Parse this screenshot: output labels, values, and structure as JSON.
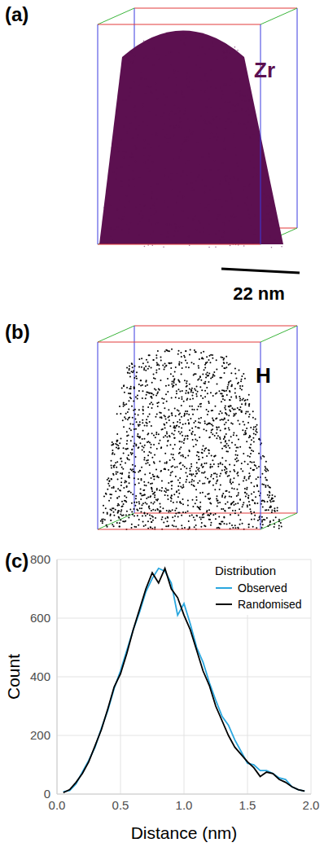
{
  "panels": [
    {
      "label": "(a)",
      "element": "Zr",
      "scale_bar": "22 nm",
      "color": "#5c1050"
    },
    {
      "label": "(b)",
      "element": "H",
      "color": "#000000"
    },
    {
      "label": "(c)"
    }
  ],
  "chart_data": {
    "type": "line",
    "x_label": "Distance (nm)",
    "y_label": "Count",
    "legend_title": "Distribution",
    "legend": "top-right",
    "grid": true,
    "x": [
      0.05,
      0.1,
      0.15,
      0.2,
      0.25,
      0.3,
      0.35,
      0.4,
      0.45,
      0.5,
      0.55,
      0.6,
      0.65,
      0.7,
      0.75,
      0.8,
      0.85,
      0.9,
      0.95,
      1.0,
      1.05,
      1.1,
      1.15,
      1.2,
      1.25,
      1.3,
      1.35,
      1.4,
      1.45,
      1.5,
      1.55,
      1.6,
      1.65,
      1.7,
      1.75,
      1.8,
      1.85,
      1.9,
      1.95
    ],
    "series": [
      {
        "name": "Observed",
        "color": "#2aa7df",
        "values": [
          8,
          12,
          35,
          75,
          115,
          160,
          225,
          285,
          360,
          420,
          490,
          560,
          620,
          690,
          735,
          770,
          760,
          720,
          610,
          650,
          580,
          500,
          450,
          380,
          320,
          265,
          235,
          185,
          145,
          105,
          100,
          80,
          80,
          70,
          55,
          50,
          25,
          15,
          10
        ]
      },
      {
        "name": "Randomised",
        "color": "#000000",
        "values": [
          5,
          15,
          40,
          70,
          110,
          165,
          220,
          290,
          365,
          410,
          480,
          560,
          630,
          700,
          755,
          720,
          770,
          700,
          670,
          610,
          560,
          490,
          420,
          370,
          300,
          250,
          200,
          160,
          135,
          110,
          90,
          60,
          75,
          70,
          50,
          40,
          25,
          15,
          10
        ]
      }
    ],
    "xlim": [
      0,
      2
    ],
    "xticks": [
      {
        "value": 0,
        "label": "0.0"
      },
      {
        "value": 0.5,
        "label": "0.5"
      },
      {
        "value": 1,
        "label": "1.0"
      },
      {
        "value": 1.5,
        "label": "1.5"
      },
      {
        "value": 2,
        "label": "2.0"
      }
    ],
    "ylim": [
      0,
      800
    ],
    "yticks": [
      0,
      200,
      400,
      600,
      800
    ]
  }
}
